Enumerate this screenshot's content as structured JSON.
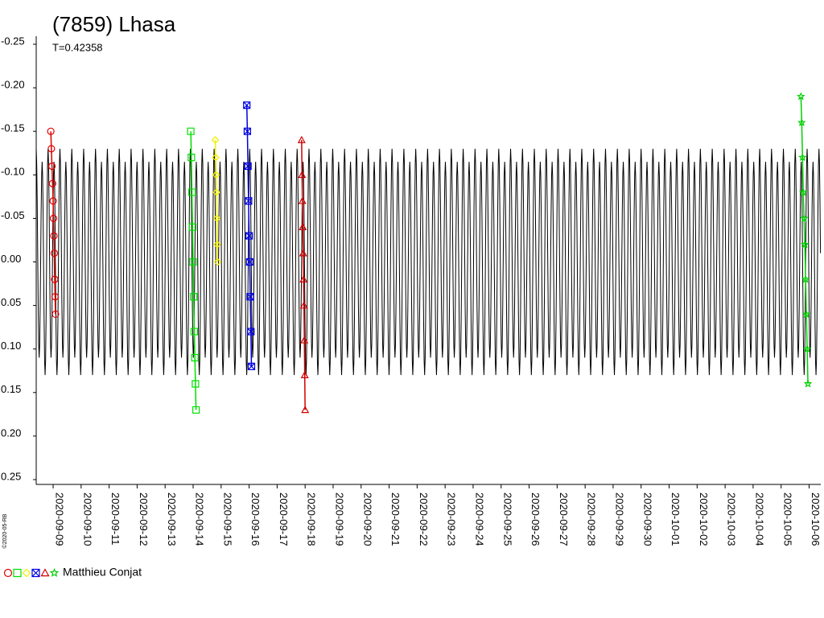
{
  "chart_data": {
    "type": "scatter",
    "title": "(7859) Lhasa",
    "subtitle": "T=0.42358",
    "observer": "Matthieu Conjat",
    "copyright": "©2020-05-RB",
    "ylim": [
      -0.25,
      0.25
    ],
    "yticks": [
      -0.25,
      {
        "value": -0.2,
        "label": "-0.20"
      },
      -0.15,
      {
        "value": -0.1,
        "label": "-0.10"
      },
      -0.05,
      {
        "value": 0,
        "label": "0.00"
      },
      0.05,
      {
        "value": 0.1,
        "label": "0.10"
      },
      0.15,
      {
        "value": 0.2,
        "label": "0.20"
      },
      0.25
    ],
    "xlim": [
      "2020-09-08T09:30",
      "2020-10-06T10:00"
    ],
    "xticks": [
      "2020-09-09",
      "2020-09-10",
      "2020-09-11",
      "2020-09-12",
      "2020-09-13",
      "2020-09-14",
      "2020-09-15",
      "2020-09-16",
      "2020-09-17",
      "2020-09-18",
      "2020-09-19",
      "2020-09-20",
      "2020-09-21",
      "2020-09-22",
      "2020-09-23",
      "2020-09-24",
      "2020-09-25",
      "2020-09-26",
      "2020-09-27",
      "2020-09-28",
      "2020-09-29",
      "2020-09-30",
      "2020-10-01",
      "2020-10-02",
      "2020-10-03",
      "2020-10-04",
      "2020-10-05",
      "2020-10-06"
    ],
    "model": {
      "color": "#000000",
      "period": 0.42358,
      "amplitudes": [
        -0.13,
        0.11,
        -0.115,
        0.13
      ]
    },
    "series": [
      {
        "color": "#e00000",
        "marker": "circle",
        "x": [
          "2020-09-08T22:00",
          "2020-09-08T22:30",
          "2020-09-08T23:00",
          "2020-09-08T23:30",
          "2020-09-09T00:00",
          "2020-09-09T00:20",
          "2020-09-09T00:40",
          "2020-09-09T01:00",
          "2020-09-09T01:20",
          "2020-09-09T01:40",
          "2020-09-09T02:00"
        ],
        "values": [
          -0.15,
          -0.13,
          -0.11,
          -0.09,
          -0.07,
          -0.05,
          -0.03,
          -0.01,
          0.02,
          0.04,
          0.06
        ]
      },
      {
        "color": "#00e000",
        "marker": "square",
        "x": [
          "2020-09-13T22:00",
          "2020-09-13T22:30",
          "2020-09-13T23:00",
          "2020-09-13T23:30",
          "2020-09-14T00:00",
          "2020-09-14T00:30",
          "2020-09-14T01:00",
          "2020-09-14T01:30",
          "2020-09-14T02:00",
          "2020-09-14T02:30"
        ],
        "values": [
          -0.15,
          -0.12,
          -0.08,
          -0.04,
          0.0,
          0.04,
          0.08,
          0.11,
          0.14,
          0.17
        ]
      },
      {
        "color": "#f0f000",
        "marker": "diamond",
        "x": [
          "2020-09-14T19:00",
          "2020-09-14T19:20",
          "2020-09-14T19:40",
          "2020-09-14T20:00",
          "2020-09-14T20:20",
          "2020-09-14T20:40",
          "2020-09-14T21:00"
        ],
        "values": [
          -0.14,
          -0.12,
          -0.1,
          -0.08,
          -0.05,
          -0.02,
          0.0
        ]
      },
      {
        "color": "#0000e0",
        "marker": "xbox",
        "x": [
          "2020-09-15T22:00",
          "2020-09-15T22:30",
          "2020-09-15T23:00",
          "2020-09-15T23:30",
          "2020-09-16T00:00",
          "2020-09-16T00:30",
          "2020-09-16T01:00",
          "2020-09-16T01:30",
          "2020-09-16T02:00"
        ],
        "values": [
          -0.18,
          -0.15,
          -0.11,
          -0.07,
          -0.03,
          0.0,
          0.04,
          0.08,
          0.12
        ]
      },
      {
        "color": "#d00000",
        "marker": "triangle",
        "x": [
          "2020-09-17T21:00",
          "2020-09-17T21:20",
          "2020-09-17T21:40",
          "2020-09-17T22:00",
          "2020-09-17T22:20",
          "2020-09-17T22:40",
          "2020-09-17T23:00",
          "2020-09-17T23:20",
          "2020-09-17T23:40",
          "2020-09-18T00:00"
        ],
        "values": [
          -0.14,
          -0.1,
          -0.07,
          -0.04,
          -0.01,
          0.02,
          0.05,
          0.09,
          0.13,
          0.17
        ]
      },
      {
        "color": "#00d000",
        "marker": "star",
        "x": [
          "2020-10-05T17:00",
          "2020-10-05T17:40",
          "2020-10-05T18:20",
          "2020-10-05T19:00",
          "2020-10-05T19:40",
          "2020-10-05T20:20",
          "2020-10-05T21:00",
          "2020-10-05T21:40",
          "2020-10-05T22:20",
          "2020-10-05T23:00"
        ],
        "values": [
          -0.19,
          -0.16,
          -0.12,
          -0.08,
          -0.05,
          -0.02,
          0.02,
          0.06,
          0.1,
          0.14
        ]
      }
    ]
  }
}
